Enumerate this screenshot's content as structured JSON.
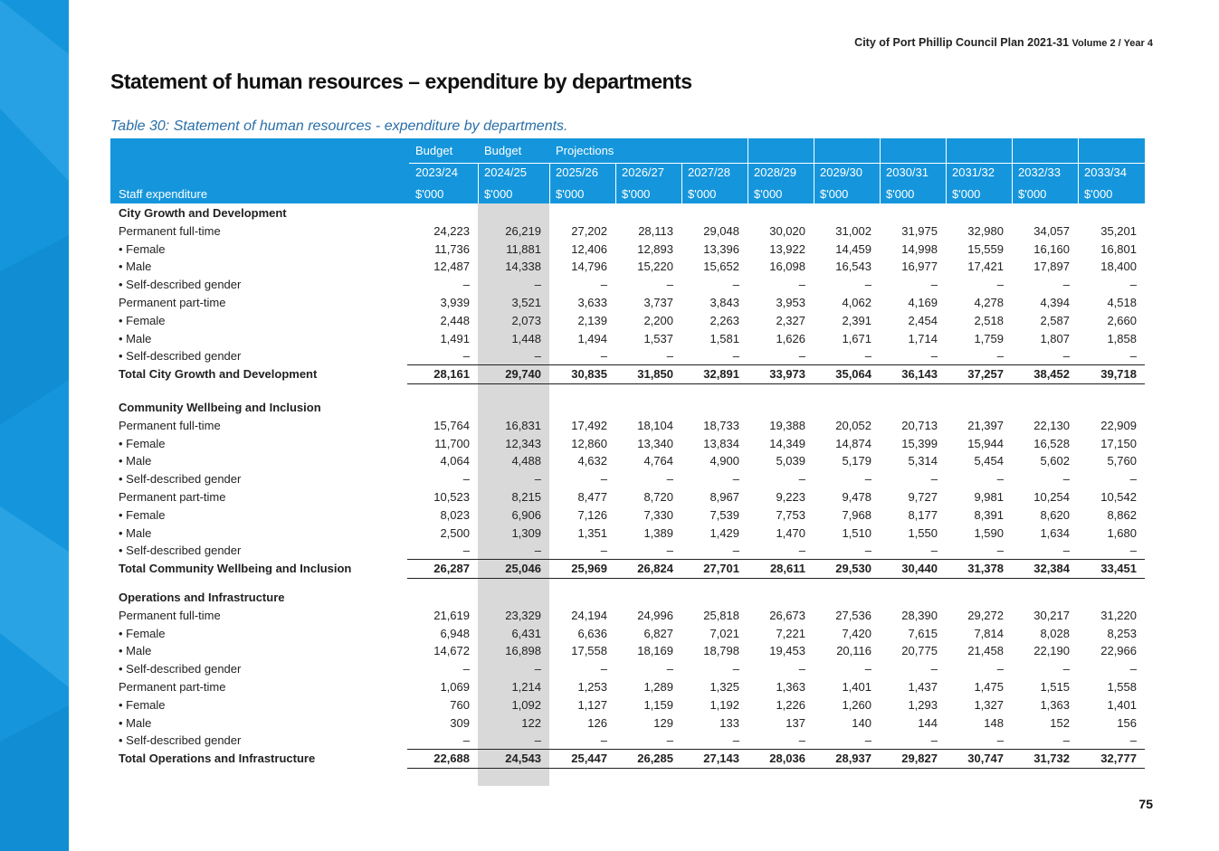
{
  "header": {
    "org": "City of Port Phillip Council Plan 2021-31",
    "volume": "Volume 2 / Year 4"
  },
  "title": "Statement of human resources – expenditure by departments",
  "caption": "Table 30: Statement of human resources - expenditure by departments.",
  "table": {
    "group_headers": [
      "Budget",
      "Budget",
      "Projections"
    ],
    "years": [
      "2023/24",
      "2024/25",
      "2025/26",
      "2026/27",
      "2027/28",
      "2028/29",
      "2029/30",
      "2030/31",
      "2031/32",
      "2032/33",
      "2033/34"
    ],
    "row_header": "Staff expenditure",
    "units": [
      "$'000",
      "$'000",
      "$'000",
      "$'000",
      "$'000",
      "$'000",
      "$'000",
      "$'000",
      "$'000",
      "$'000",
      "$'000"
    ],
    "sections": [
      {
        "title": "City Growth and Development",
        "rows": [
          {
            "label": "Permanent full-time",
            "values": [
              "24,223",
              "26,219",
              "27,202",
              "28,113",
              "29,048",
              "30,020",
              "31,002",
              "31,975",
              "32,980",
              "34,057",
              "35,201"
            ]
          },
          {
            "label": "• Female",
            "values": [
              "11,736",
              "11,881",
              "12,406",
              "12,893",
              "13,396",
              "13,922",
              "14,459",
              "14,998",
              "15,559",
              "16,160",
              "16,801"
            ]
          },
          {
            "label": "• Male",
            "values": [
              "12,487",
              "14,338",
              "14,796",
              "15,220",
              "15,652",
              "16,098",
              "16,543",
              "16,977",
              "17,421",
              "17,897",
              "18,400"
            ]
          },
          {
            "label": "• Self-described gender",
            "values": [
              "–",
              "–",
              "–",
              "–",
              "–",
              "–",
              "–",
              "–",
              "–",
              "–",
              "–"
            ]
          },
          {
            "label": "Permanent part-time",
            "values": [
              "3,939",
              "3,521",
              "3,633",
              "3,737",
              "3,843",
              "3,953",
              "4,062",
              "4,169",
              "4,278",
              "4,394",
              "4,518"
            ]
          },
          {
            "label": "• Female",
            "values": [
              "2,448",
              "2,073",
              "2,139",
              "2,200",
              "2,263",
              "2,327",
              "2,391",
              "2,454",
              "2,518",
              "2,587",
              "2,660"
            ]
          },
          {
            "label": "• Male",
            "values": [
              "1,491",
              "1,448",
              "1,494",
              "1,537",
              "1,581",
              "1,626",
              "1,671",
              "1,714",
              "1,759",
              "1,807",
              "1,858"
            ]
          },
          {
            "label": "• Self-described gender",
            "values": [
              "–",
              "–",
              "–",
              "–",
              "–",
              "–",
              "–",
              "–",
              "–",
              "–",
              "–"
            ]
          }
        ],
        "total": {
          "label": "Total City Growth and Development",
          "values": [
            "28,161",
            "29,740",
            "30,835",
            "31,850",
            "32,891",
            "33,973",
            "35,064",
            "36,143",
            "37,257",
            "38,452",
            "39,718"
          ]
        }
      },
      {
        "title": "Community Wellbeing and Inclusion",
        "rows": [
          {
            "label": "Permanent full-time",
            "values": [
              "15,764",
              "16,831",
              "17,492",
              "18,104",
              "18,733",
              "19,388",
              "20,052",
              "20,713",
              "21,397",
              "22,130",
              "22,909"
            ]
          },
          {
            "label": "• Female",
            "values": [
              "11,700",
              "12,343",
              "12,860",
              "13,340",
              "13,834",
              "14,349",
              "14,874",
              "15,399",
              "15,944",
              "16,528",
              "17,150"
            ]
          },
          {
            "label": "• Male",
            "values": [
              "4,064",
              "4,488",
              "4,632",
              "4,764",
              "4,900",
              "5,039",
              "5,179",
              "5,314",
              "5,454",
              "5,602",
              "5,760"
            ]
          },
          {
            "label": "• Self-described gender",
            "values": [
              "–",
              "–",
              "–",
              "–",
              "–",
              "–",
              "–",
              "–",
              "–",
              "–",
              "–"
            ]
          },
          {
            "label": "Permanent part-time",
            "values": [
              "10,523",
              "8,215",
              "8,477",
              "8,720",
              "8,967",
              "9,223",
              "9,478",
              "9,727",
              "9,981",
              "10,254",
              "10,542"
            ]
          },
          {
            "label": "• Female",
            "values": [
              "8,023",
              "6,906",
              "7,126",
              "7,330",
              "7,539",
              "7,753",
              "7,968",
              "8,177",
              "8,391",
              "8,620",
              "8,862"
            ]
          },
          {
            "label": "• Male",
            "values": [
              "2,500",
              "1,309",
              "1,351",
              "1,389",
              "1,429",
              "1,470",
              "1,510",
              "1,550",
              "1,590",
              "1,634",
              "1,680"
            ]
          },
          {
            "label": "• Self-described gender",
            "values": [
              "–",
              "–",
              "–",
              "–",
              "–",
              "–",
              "–",
              "–",
              "–",
              "–",
              "–"
            ]
          }
        ],
        "total": {
          "label": "Total Community Wellbeing and Inclusion",
          "values": [
            "26,287",
            "25,046",
            "25,969",
            "26,824",
            "27,701",
            "28,611",
            "29,530",
            "30,440",
            "31,378",
            "32,384",
            "33,451"
          ]
        }
      },
      {
        "title": "Operations and Infrastructure",
        "rows": [
          {
            "label": "Permanent full-time",
            "values": [
              "21,619",
              "23,329",
              "24,194",
              "24,996",
              "25,818",
              "26,673",
              "27,536",
              "28,390",
              "29,272",
              "30,217",
              "31,220"
            ]
          },
          {
            "label": "• Female",
            "values": [
              "6,948",
              "6,431",
              "6,636",
              "6,827",
              "7,021",
              "7,221",
              "7,420",
              "7,615",
              "7,814",
              "8,028",
              "8,253"
            ]
          },
          {
            "label": "• Male",
            "values": [
              "14,672",
              "16,898",
              "17,558",
              "18,169",
              "18,798",
              "19,453",
              "20,116",
              "20,775",
              "21,458",
              "22,190",
              "22,966"
            ]
          },
          {
            "label": "• Self-described gender",
            "values": [
              "–",
              "–",
              "–",
              "–",
              "–",
              "–",
              "–",
              "–",
              "–",
              "–",
              "–"
            ]
          },
          {
            "label": "Permanent part-time",
            "values": [
              "1,069",
              "1,214",
              "1,253",
              "1,289",
              "1,325",
              "1,363",
              "1,401",
              "1,437",
              "1,475",
              "1,515",
              "1,558"
            ]
          },
          {
            "label": "• Female",
            "values": [
              "760",
              "1,092",
              "1,127",
              "1,159",
              "1,192",
              "1,226",
              "1,260",
              "1,293",
              "1,327",
              "1,363",
              "1,401"
            ]
          },
          {
            "label": "• Male",
            "values": [
              "309",
              "122",
              "126",
              "129",
              "133",
              "137",
              "140",
              "144",
              "148",
              "152",
              "156"
            ]
          },
          {
            "label": "• Self-described gender",
            "values": [
              "–",
              "–",
              "–",
              "–",
              "–",
              "–",
              "–",
              "–",
              "–",
              "–",
              "–"
            ]
          }
        ],
        "total": {
          "label": "Total Operations and Infrastructure",
          "values": [
            "22,688",
            "24,543",
            "25,447",
            "26,285",
            "27,143",
            "28,036",
            "28,937",
            "29,827",
            "30,747",
            "31,732",
            "32,777"
          ]
        }
      }
    ]
  },
  "page_number": "75"
}
